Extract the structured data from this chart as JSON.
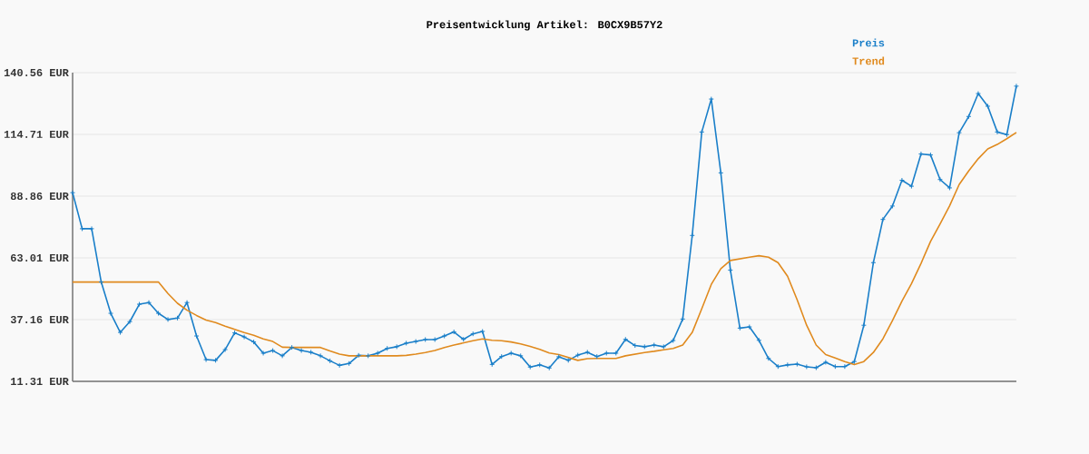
{
  "chart_data": {
    "type": "line",
    "title": "Preisentwicklung Artikel: B0CX9B57Y2",
    "categories": [
      null,
      null,
      null,
      null,
      null,
      null,
      null,
      null,
      null,
      null,
      null,
      null,
      null,
      null,
      null,
      null,
      null,
      null,
      null,
      null,
      null,
      null,
      null,
      null,
      null,
      null,
      null,
      null,
      null,
      null,
      null,
      null,
      null,
      null,
      null,
      null,
      null,
      null,
      null,
      null,
      null,
      null,
      null,
      null,
      null,
      null,
      null,
      null,
      null,
      null,
      null,
      null,
      null,
      null,
      null,
      null,
      null,
      null,
      null,
      null,
      null,
      null,
      null,
      null,
      null,
      null,
      null,
      null,
      null,
      null,
      null,
      null,
      null,
      null,
      null,
      null,
      null,
      null,
      null,
      null,
      null,
      null,
      null,
      null,
      null,
      null,
      null,
      null,
      null,
      null,
      null,
      null,
      null,
      null,
      null,
      null,
      null,
      null,
      null,
      null
    ],
    "series": [
      {
        "name": "Preis",
        "color": "#1a7fc9",
        "marker": "cross",
        "values": [
          90.3,
          75.2,
          75.2,
          52.9,
          39.8,
          31.8,
          36.3,
          43.6,
          44.3,
          39.8,
          37.2,
          37.8,
          44.3,
          30.3,
          20.4,
          20.1,
          24.6,
          31.6,
          29.9,
          27.8,
          23.1,
          24.2,
          22.0,
          25.5,
          24.2,
          23.5,
          22.0,
          19.9,
          18.0,
          18.8,
          22.2,
          22.0,
          23.1,
          25.1,
          25.8,
          27.3,
          28.0,
          28.8,
          28.8,
          30.3,
          32.0,
          28.9,
          31.2,
          32.2,
          18.4,
          21.7,
          23.1,
          22.0,
          17.3,
          18.2,
          16.9,
          21.6,
          20.1,
          22.3,
          23.5,
          21.7,
          23.1,
          23.1,
          28.9,
          26.3,
          25.8,
          26.5,
          25.8,
          28.4,
          37.4,
          72.4,
          115.7,
          129.5,
          98.6,
          57.9,
          33.6,
          34.1,
          28.5,
          20.9,
          17.5,
          18.2,
          18.5,
          17.4,
          17.0,
          19.3,
          17.5,
          17.5,
          19.6,
          34.8,
          61.0,
          79.1,
          84.7,
          95.5,
          93.0,
          106.5,
          106.1,
          95.8,
          92.3,
          115.4,
          122.2,
          131.8,
          126.5,
          115.7,
          114.6,
          134.9
        ]
      },
      {
        "name": "Trend",
        "color": "#e08a1e",
        "marker": "none",
        "values": [
          52.9,
          52.9,
          52.9,
          52.9,
          52.9,
          52.9,
          52.9,
          52.9,
          52.9,
          52.9,
          48.1,
          44.0,
          41.1,
          38.9,
          37.0,
          35.9,
          34.4,
          33.1,
          31.7,
          30.6,
          29.1,
          28.0,
          25.6,
          25.5,
          25.5,
          25.5,
          25.5,
          24.0,
          22.7,
          22.0,
          22.0,
          22.0,
          22.0,
          22.0,
          22.0,
          22.2,
          22.7,
          23.4,
          24.2,
          25.5,
          26.5,
          27.4,
          28.3,
          29.1,
          28.5,
          28.3,
          27.8,
          27.0,
          25.9,
          24.7,
          23.2,
          22.5,
          21.3,
          20.1,
          20.8,
          20.9,
          20.9,
          20.9,
          22.0,
          22.7,
          23.4,
          23.9,
          24.5,
          25.1,
          26.5,
          31.8,
          41.7,
          51.9,
          58.5,
          61.9,
          62.6,
          63.3,
          63.9,
          63.3,
          61.0,
          55.3,
          45.5,
          34.8,
          26.5,
          22.5,
          21.1,
          19.6,
          18.3,
          19.6,
          23.4,
          29.1,
          36.7,
          44.9,
          52.2,
          60.7,
          69.9,
          77.2,
          84.8,
          93.7,
          99.4,
          104.5,
          108.6,
          110.5,
          112.9,
          115.5
        ]
      }
    ],
    "ylim": [
      11.31,
      140.56
    ],
    "yticks": [
      {
        "value": 11.31,
        "label": "11.31 EUR"
      },
      {
        "value": 37.16,
        "label": "37.16 EUR"
      },
      {
        "value": 63.01,
        "label": "63.01 EUR"
      },
      {
        "value": 88.86,
        "label": "88.86 EUR"
      },
      {
        "value": 114.71,
        "label": "114.71 EUR"
      },
      {
        "value": 140.56,
        "label": "140.56 EUR"
      }
    ],
    "grid": "y",
    "legend": "top right"
  }
}
